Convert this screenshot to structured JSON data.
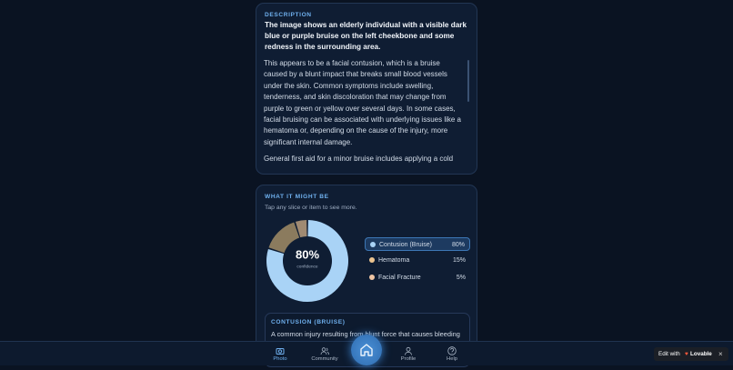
{
  "description": {
    "heading": "DESCRIPTION",
    "summary": "The image shows an elderly individual with a visible dark blue or purple bruise on the left cheekbone and some redness in the surrounding area.",
    "paragraphs": [
      "This appears to be a facial contusion, which is a bruise caused by a blunt impact that breaks small blood vessels under the skin. Common symptoms include swelling, tenderness, and skin discoloration that may change from purple to green or yellow over several days. In some cases, facial bruising can be associated with underlying issues like a hematoma or, depending on the cause of the injury, more significant internal damage.",
      "General first aid for a minor bruise includes applying a cold"
    ]
  },
  "possibilities": {
    "heading": "WHAT IT MIGHT BE",
    "hint": "Tap any slice or item to see more."
  },
  "chart_data": {
    "type": "donut",
    "categories": [
      "Contusion (Bruise)",
      "Hematoma",
      "Facial Fracture"
    ],
    "values": [
      80,
      15,
      5
    ],
    "value_labels": [
      "80%",
      "15%",
      "5%"
    ],
    "colors": [
      "#a9d3f6",
      "#8b7b5e",
      "#a08a72"
    ],
    "legend_colors": [
      "#a9d3f6",
      "#ecc48f",
      "#efc5a4"
    ],
    "center_caption": "confidence"
  },
  "detail": {
    "heading": "CONTUSION (BRUISE)",
    "text": "A common injury resulting from blunt force that causes bleeding"
  },
  "nav": [
    "Photo",
    "Community",
    "Profile",
    "Help"
  ],
  "badge": {
    "text": "Edit with",
    "brand": "Lovable",
    "close": "×"
  }
}
